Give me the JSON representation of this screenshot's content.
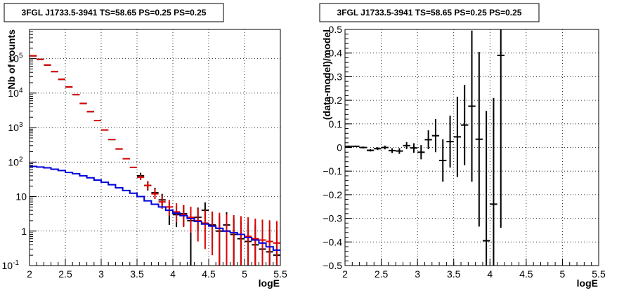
{
  "chart_data": [
    {
      "type": "histogram",
      "title": "3FGL J1733.5-3941 TS=58.65 PS=0.25 PS=0.25",
      "xlabel": "logE",
      "ylabel": "Nb of counts",
      "xlim": [
        2,
        5.5
      ],
      "ylim": [
        0.1,
        700000
      ],
      "yscale": "log",
      "grid": true,
      "x_ticks": [
        {
          "value": 2,
          "label": "2"
        },
        {
          "value": 2.5,
          "label": "2.5"
        },
        {
          "value": 3,
          "label": "3"
        },
        {
          "value": 3.5,
          "label": "3.5"
        },
        {
          "value": 4,
          "label": "4"
        },
        {
          "value": 4.5,
          "label": "4.5"
        },
        {
          "value": 5,
          "label": "5"
        },
        {
          "value": 5.5,
          "label": "5.5"
        }
      ],
      "y_ticks": [
        {
          "value": 0.1,
          "base": "10",
          "exp": "-1"
        },
        {
          "value": 1,
          "base": "1",
          "exp": ""
        },
        {
          "value": 10,
          "base": "10",
          "exp": ""
        },
        {
          "value": 100,
          "base": "10",
          "exp": "2"
        },
        {
          "value": 1000,
          "base": "10",
          "exp": "3"
        },
        {
          "value": 10000,
          "base": "10",
          "exp": "4"
        },
        {
          "value": 100000,
          "base": "10",
          "exp": "5"
        }
      ],
      "bin_width": 0.1,
      "series": [
        {
          "color": "#000000",
          "x": [
            2.05,
            2.15,
            2.25,
            2.35,
            2.45,
            2.55,
            2.65,
            2.75,
            2.85,
            2.95,
            3.05,
            3.15,
            3.25,
            3.35,
            3.45,
            3.55,
            3.65,
            3.75,
            3.85,
            3.95,
            4.05,
            4.15,
            4.25,
            4.35,
            4.45,
            4.55,
            4.65,
            4.75,
            4.85,
            4.95,
            5.05,
            5.15,
            5.25,
            5.35,
            5.45
          ],
          "y": [
            120000,
            95000,
            65000,
            42000,
            25000,
            15000,
            9000,
            5000,
            2900,
            1600,
            850,
            450,
            240,
            125,
            70,
            40,
            21,
            13,
            8,
            4,
            3,
            3.2,
            2,
            2.5,
            4,
            1.5,
            1,
            1.5,
            0.8,
            0.6,
            0.5,
            0.4,
            0.3,
            0.25,
            0.2
          ],
          "yerr_lo": [
            0,
            0,
            0,
            0,
            0,
            0,
            0,
            0,
            0,
            0,
            0,
            0,
            0,
            0,
            0,
            8,
            6,
            4,
            3,
            2.5,
            1.7,
            1.8,
            1.9,
            1.5,
            2,
            1.2,
            0.9,
            1.2,
            0.7,
            0.55,
            0.47,
            0.38,
            0.29,
            0.24,
            0.19
          ],
          "yerr_hi": [
            0,
            0,
            0,
            0,
            0,
            0,
            0,
            0,
            0,
            0,
            0,
            0,
            0,
            0,
            0,
            9,
            7,
            5,
            4,
            3,
            2.5,
            2.5,
            2.5,
            2.3,
            2.8,
            2.0,
            1.8,
            2.0,
            1.5,
            1.3,
            1.2,
            1.1,
            1.0,
            0.9,
            0.8
          ]
        },
        {
          "color": "#dd0000",
          "x": [
            2.05,
            2.15,
            2.25,
            2.35,
            2.45,
            2.55,
            2.65,
            2.75,
            2.85,
            2.95,
            3.05,
            3.15,
            3.25,
            3.35,
            3.45,
            3.55,
            3.65,
            3.75,
            3.85,
            3.95,
            4.05,
            4.15,
            4.25,
            4.35,
            4.45,
            4.55,
            4.65,
            4.75,
            4.85,
            4.95,
            5.05,
            5.15,
            5.25,
            5.35,
            5.45
          ],
          "y": [
            120000,
            95000,
            65000,
            42000,
            25000,
            15000,
            9000,
            5000,
            2900,
            1600,
            850,
            450,
            240,
            125,
            70,
            36,
            21,
            12,
            7,
            5,
            3.6,
            3.0,
            2.5,
            2.0,
            1.7,
            1.4,
            1.2,
            1.0,
            0.9,
            0.8,
            0.7,
            0.6,
            0.55,
            0.5,
            0.45
          ],
          "yerr_lo": [
            0,
            0,
            0,
            0,
            0,
            0,
            0,
            0,
            0,
            0,
            0,
            0,
            0,
            0,
            0,
            6,
            5,
            3.5,
            2.6,
            2.2,
            1.8,
            1.7,
            1.6,
            1.5,
            1.4,
            1.2,
            1.1,
            0.95,
            0.85,
            0.75,
            0.65,
            0.55,
            0.5,
            0.46,
            0.42
          ],
          "yerr_hi": [
            0,
            0,
            0,
            0,
            0,
            0,
            0,
            0,
            0,
            0,
            0,
            0,
            0,
            0,
            0,
            7,
            6,
            4.5,
            3.5,
            3,
            2.8,
            2.7,
            2.6,
            2.5,
            2.4,
            2.3,
            2.2,
            2.1,
            2.0,
            1.9,
            1.8,
            1.7,
            1.6,
            1.55,
            1.5
          ]
        },
        {
          "color": "#0000dd",
          "style": "step",
          "x": [
            2.05,
            2.15,
            2.25,
            2.35,
            2.45,
            2.55,
            2.65,
            2.75,
            2.85,
            2.95,
            3.05,
            3.15,
            3.25,
            3.35,
            3.45,
            3.55,
            3.65,
            3.75,
            3.85,
            3.95,
            4.05,
            4.15,
            4.25,
            4.35,
            4.45,
            4.55,
            4.65,
            4.75,
            4.85,
            4.95,
            5.05,
            5.15,
            5.25,
            5.35,
            5.45
          ],
          "y": [
            75,
            72,
            68,
            62,
            57,
            50,
            46,
            40,
            35,
            30,
            26,
            22,
            18,
            15,
            12.5,
            10,
            7.5,
            6,
            5,
            4,
            3.3,
            2.8,
            2.3,
            1.9,
            1.6,
            1.4,
            1.2,
            1.0,
            0.9,
            0.8,
            0.65,
            0.55,
            0.45,
            0.35,
            0.28
          ]
        }
      ]
    },
    {
      "type": "scatter",
      "title": "3FGL J1733.5-3941 TS=58.65 PS=0.25 PS=0.25",
      "xlabel": "logE",
      "ylabel": "(data-model)/model",
      "xlim": [
        2,
        5.5
      ],
      "ylim": [
        -0.5,
        0.5
      ],
      "yscale": "linear",
      "grid": true,
      "x_ticks": [
        {
          "value": 2,
          "label": "2"
        },
        {
          "value": 2.5,
          "label": "2.5"
        },
        {
          "value": 3,
          "label": "3"
        },
        {
          "value": 3.5,
          "label": "3.5"
        },
        {
          "value": 4,
          "label": "4"
        },
        {
          "value": 4.5,
          "label": "4.5"
        },
        {
          "value": 5,
          "label": "5"
        },
        {
          "value": 5.5,
          "label": "5.5"
        }
      ],
      "y_ticks": [
        {
          "value": -0.5,
          "label": "−0.5"
        },
        {
          "value": -0.4,
          "label": "−0.4"
        },
        {
          "value": -0.3,
          "label": "−0.3"
        },
        {
          "value": -0.2,
          "label": "−0.2"
        },
        {
          "value": -0.1,
          "label": "−0.1"
        },
        {
          "value": 0,
          "label": "0"
        },
        {
          "value": 0.1,
          "label": "0.1"
        },
        {
          "value": 0.2,
          "label": "0.2"
        },
        {
          "value": 0.3,
          "label": "0.3"
        },
        {
          "value": 0.4,
          "label": "0.4"
        },
        {
          "value": 0.5,
          "label": "0.5"
        }
      ],
      "bin_width": 0.1,
      "series": [
        {
          "color": "#000000",
          "x": [
            2.05,
            2.15,
            2.25,
            2.35,
            2.45,
            2.55,
            2.65,
            2.75,
            2.85,
            2.95,
            3.05,
            3.15,
            3.25,
            3.35,
            3.45,
            3.55,
            3.65,
            3.75,
            3.85,
            3.95,
            4.05,
            4.15
          ],
          "y": [
            0.005,
            0.005,
            0.0,
            -0.012,
            -0.005,
            0.0,
            -0.013,
            -0.015,
            0.008,
            -0.002,
            -0.02,
            0.033,
            0.05,
            -0.055,
            0.025,
            0.045,
            0.095,
            0.175,
            0.035,
            -0.395,
            -0.24,
            0.39
          ],
          "yerr": [
            0.003,
            0.003,
            0.004,
            0.005,
            0.006,
            0.008,
            0.01,
            0.012,
            0.015,
            0.02,
            0.03,
            0.04,
            0.07,
            0.09,
            0.11,
            0.17,
            0.17,
            0.32,
            0.37,
            0.55,
            0.45,
            0.73
          ]
        }
      ]
    }
  ]
}
